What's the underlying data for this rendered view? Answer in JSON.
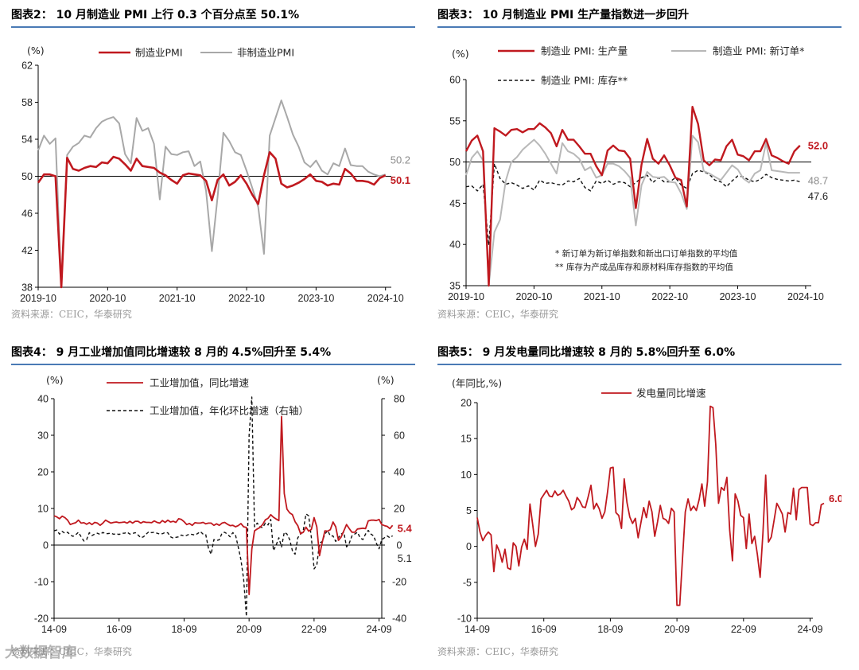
{
  "watermark": "大数据智库",
  "chart_data": [
    {
      "id": "p2",
      "type": "line",
      "title": "图表2：  10 月制造业 PMI 上行 0.3 个百分点至 50.1%",
      "source": "资料来源：CEIC，华泰研究",
      "yunit": "(%)",
      "ylim": [
        38,
        62
      ],
      "yticks": [
        38,
        42,
        46,
        50,
        54,
        58,
        62
      ],
      "xticks": [
        "2019-10",
        "2020-10",
        "2021-10",
        "2022-10",
        "2023-10",
        "2024-10"
      ],
      "xrange": [
        0,
        61
      ],
      "xtick_pos": [
        0,
        12,
        24,
        36,
        48,
        60
      ],
      "refline": 50,
      "series": [
        {
          "name": "制造业PMI",
          "color": "#c0191f",
          "dash": "",
          "width": 2.6,
          "end_label": "50.1",
          "values": [
            49.3,
            50.2,
            50.2,
            50.0,
            35.7,
            52.0,
            50.8,
            50.6,
            50.9,
            51.1,
            51.0,
            51.5,
            51.4,
            52.1,
            51.9,
            51.3,
            50.6,
            51.9,
            51.1,
            51.0,
            50.9,
            50.4,
            50.1,
            49.6,
            49.2,
            50.1,
            50.3,
            50.2,
            50.1,
            49.5,
            47.4,
            49.6,
            50.2,
            49.0,
            49.4,
            50.1,
            49.2,
            48.0,
            47.0,
            50.1,
            52.6,
            51.9,
            49.2,
            48.8,
            49.0,
            49.3,
            49.7,
            50.2,
            49.5,
            49.4,
            49.0,
            49.2,
            49.1,
            50.8,
            50.3,
            49.5,
            49.5,
            49.4,
            49.1,
            49.8,
            50.1
          ]
        },
        {
          "name": "非制造业PMI",
          "color": "#a8a8a8",
          "dash": "",
          "width": 2.0,
          "end_label": "50.2",
          "values": [
            52.8,
            54.4,
            53.5,
            54.1,
            29.6,
            52.3,
            53.2,
            53.6,
            54.4,
            54.2,
            55.2,
            55.9,
            56.2,
            56.4,
            55.7,
            52.4,
            51.4,
            56.3,
            54.9,
            55.2,
            53.5,
            47.5,
            53.2,
            52.4,
            52.3,
            52.6,
            52.7,
            51.1,
            51.6,
            48.4,
            41.9,
            47.8,
            54.7,
            53.8,
            52.6,
            52.3,
            50.6,
            48.7,
            46.7,
            41.6,
            54.4,
            56.3,
            58.2,
            56.4,
            54.5,
            53.2,
            51.5,
            51.0,
            51.7,
            50.6,
            50.2,
            51.4,
            51.1,
            53.0,
            51.2,
            51.1,
            51.1,
            50.5,
            50.2,
            50.0,
            50.2
          ]
        }
      ]
    },
    {
      "id": "p3",
      "type": "line",
      "title": "图表3：  10 月制造业 PMI 生产量指数进一步回升",
      "source": "资料来源：CEIC，华泰研究",
      "yunit": "(%)",
      "ylim": [
        35,
        60
      ],
      "yticks": [
        35,
        40,
        45,
        50,
        55,
        60
      ],
      "xticks": [
        "2019-10",
        "2020-10",
        "2021-10",
        "2022-10",
        "2023-10",
        "2024-10"
      ],
      "xrange": [
        0,
        61
      ],
      "xtick_pos": [
        0,
        12,
        24,
        36,
        48,
        60
      ],
      "refline": 50,
      "notes": [
        "*  新订单为新订单指数和新出口订单指数的平均值",
        "**  库存为产成品库存和原材料库存指数的平均值"
      ],
      "series": [
        {
          "name": "制造业 PMI: 生产量",
          "color": "#c0191f",
          "dash": "",
          "width": 2.4,
          "end_label": "52.0",
          "values": [
            51.3,
            52.6,
            53.2,
            51.3,
            27.8,
            54.1,
            53.7,
            53.2,
            53.9,
            54.0,
            53.6,
            54.0,
            54.0,
            54.7,
            54.2,
            53.5,
            51.9,
            53.9,
            52.7,
            52.7,
            51.9,
            51.0,
            51.0,
            49.5,
            48.4,
            51.4,
            52.0,
            51.4,
            51.3,
            50.4,
            44.4,
            49.7,
            52.8,
            50.4,
            49.8,
            50.8,
            49.6,
            48.1,
            47.8,
            44.6,
            56.7,
            54.6,
            50.2,
            49.6,
            50.3,
            50.2,
            51.9,
            52.7,
            50.9,
            50.7,
            50.2,
            51.3,
            51.3,
            52.8,
            50.8,
            50.5,
            50.1,
            49.8,
            51.3,
            52.0
          ]
        },
        {
          "name": "制造业 PMI: 新订单*",
          "color": "#b8b8b8",
          "dash": "",
          "width": 2.0,
          "end_label": "48.7",
          "values": [
            48.4,
            50.5,
            51.3,
            50.2,
            28.7,
            41.5,
            43.0,
            47.7,
            50.0,
            50.6,
            51.5,
            52.1,
            52.7,
            52.0,
            51.0,
            49.8,
            48.6,
            52.3,
            51.3,
            51.0,
            50.4,
            49.0,
            49.4,
            48.1,
            48.4,
            49.8,
            49.8,
            49.5,
            48.9,
            48.1,
            42.3,
            47.2,
            48.8,
            48.2,
            48.1,
            48.2,
            47.6,
            47.5,
            46.2,
            44.3,
            53.2,
            52.4,
            48.9,
            48.6,
            48.2,
            47.8,
            48.7,
            49.6,
            49.1,
            48.0,
            47.5,
            48.6,
            49.0,
            52.3,
            49.0,
            48.9,
            48.8,
            48.7,
            48.7,
            48.7
          ]
        },
        {
          "name": "制造业 PMI: 库存**",
          "color": "#111111",
          "dash": "4,3",
          "width": 1.4,
          "end_label": "47.6",
          "values": [
            47.0,
            47.1,
            46.5,
            47.3,
            39.9,
            49.8,
            48.0,
            47.3,
            47.5,
            47.2,
            46.8,
            47.1,
            46.6,
            47.8,
            47.4,
            47.5,
            47.3,
            47.2,
            47.7,
            47.6,
            48.0,
            46.9,
            46.5,
            47.7,
            47.4,
            47.8,
            47.3,
            47.6,
            47.5,
            47.0,
            47.5,
            48.1,
            48.4,
            47.5,
            48.1,
            47.6,
            47.6,
            48.1,
            47.2,
            46.8,
            48.6,
            49.0,
            48.8,
            48.5,
            47.8,
            47.6,
            47.0,
            47.7,
            48.3,
            48.2,
            47.8,
            47.6,
            47.9,
            48.5,
            48.1,
            47.9,
            47.8,
            47.7,
            47.8,
            47.6
          ]
        }
      ]
    },
    {
      "id": "p4",
      "type": "line",
      "title": "图表4：  9 月工业增加值同比增速较 8 月的 4.5%回升至 5.4%",
      "source": "资料来源：CEIC，华泰研究",
      "yunit": "(%)",
      "yunit_right": "(%)",
      "ylim": [
        -20,
        40
      ],
      "yticks": [
        -20,
        -10,
        0,
        10,
        20,
        30,
        40
      ],
      "ylim_right": [
        -40,
        80
      ],
      "yticks_right": [
        -40,
        -20,
        0,
        20,
        40,
        60,
        80
      ],
      "xticks": [
        "14-09",
        "16-09",
        "18-09",
        "20-09",
        "22-09",
        "24-09"
      ],
      "xrange": [
        0,
        121
      ],
      "xtick_pos": [
        0,
        24,
        48,
        72,
        96,
        120
      ],
      "refline": 0,
      "series": [
        {
          "name": "工业增加值，同比增速",
          "color": "#c0191f",
          "dash": "",
          "width": 1.8,
          "axis": "left",
          "end_label": "5.4",
          "values": [
            8.0,
            7.7,
            7.2,
            7.9,
            7.5,
            6.8,
            5.6,
            5.9,
            6.1,
            6.8,
            6.0,
            6.1,
            5.7,
            6.1,
            5.6,
            6.2,
            6.0,
            5.4,
            6.0,
            6.8,
            6.4,
            6.0,
            6.2,
            6.3,
            6.1,
            6.2,
            6.3,
            6.0,
            6.5,
            6.0,
            6.5,
            6.5,
            6.0,
            6.4,
            6.2,
            6.2,
            6.1,
            6.6,
            6.2,
            6.0,
            6.7,
            6.2,
            6.8,
            6.3,
            6.5,
            6.2,
            7.2,
            7.0,
            6.4,
            5.6,
            5.9,
            5.4,
            6.1,
            6.0,
            6.0,
            6.2,
            5.8,
            6.0,
            6.0,
            5.4,
            5.8,
            5.4,
            6.0,
            6.2,
            5.7,
            5.3,
            5.4,
            5.0,
            5.3,
            5.9,
            5.0,
            4.8,
            -13.5,
            -1.1,
            3.9,
            4.4,
            4.8,
            5.6,
            6.9,
            7.3,
            8.3,
            7.6,
            7.1,
            6.7,
            35.1,
            14.1,
            9.8,
            8.8,
            8.3,
            6.4,
            5.3,
            3.1,
            3.5,
            4.9,
            3.8,
            4.3,
            7.5,
            5.0,
            -2.9,
            0.7,
            3.9,
            3.8,
            4.2,
            6.3,
            5.0,
            1.3,
            2.2,
            3.9,
            5.6,
            4.5,
            3.5,
            3.5,
            4.4,
            4.5,
            4.6,
            4.5,
            6.6,
            6.8,
            6.8,
            6.7,
            7.0,
            5.6,
            5.3,
            5.1,
            4.5,
            5.4
          ]
        },
        {
          "name": "工业增加值，年化环比增速（右轴）",
          "color": "#111111",
          "dash": "4,3",
          "width": 1.4,
          "axis": "right",
          "end_label": "5.1",
          "values": [
            7.8,
            8.2,
            6.0,
            7.5,
            6.5,
            7.0,
            5.5,
            4.8,
            5.6,
            7.0,
            4.5,
            2.2,
            3.0,
            6.8,
            5.2,
            6.0,
            6.5,
            5.8,
            6.9,
            6.2,
            6.3,
            6.5,
            5.9,
            6.2,
            5.8,
            6.4,
            6.5,
            7.0,
            6.0,
            6.3,
            6.8,
            5.5,
            4.0,
            4.5,
            6.0,
            7.3,
            6.8,
            7.0,
            6.5,
            6.0,
            6.2,
            6.9,
            6.7,
            4.5,
            3.8,
            4.2,
            4.5,
            5.5,
            5.0,
            5.3,
            6.0,
            5.8,
            5.5,
            6.3,
            7.4,
            6.0,
            5.7,
            -1.8,
            -5.0,
            3.0,
            2.5,
            2.9,
            6.5,
            7.0,
            6.0,
            4.5,
            6.8,
            5.5,
            -1.0,
            -8.0,
            -18.5,
            -39.0,
            60.0,
            82.0,
            10.0,
            12.0,
            10.0,
            9.5,
            12.0,
            11.0,
            14.0,
            -3.0,
            0.0,
            4.0,
            -1.0,
            7.0,
            6.0,
            3.0,
            -3.0,
            -5.0,
            4.0,
            6.0,
            8.0,
            17.0,
            16.0,
            4.0,
            -13.0,
            -11.0,
            1.0,
            2.0,
            6.0,
            8.0,
            5.0,
            5.0,
            2.0,
            4.0,
            6.0,
            7.0,
            -1.0,
            1.0,
            5.0,
            6.0,
            7.0,
            4.0,
            3.0,
            6.0,
            8.0,
            6.0,
            5.0,
            1.0,
            -2.0,
            3.0,
            4.0,
            5.0,
            4.0,
            5.1
          ]
        }
      ]
    },
    {
      "id": "p5",
      "type": "line",
      "title": "图表5：  9 月发电量同比增速较 8 月的 5.8%回升至 6.0%",
      "source": "资料来源：CEIC，华泰研究",
      "yunit": "(年同比,%)",
      "ylim": [
        -10,
        20
      ],
      "yticks": [
        -10,
        -5,
        0,
        5,
        10,
        15,
        20
      ],
      "xticks": [
        "14-09",
        "16-09",
        "18-09",
        "20-09",
        "22-09",
        "24-09"
      ],
      "xrange": [
        0,
        121
      ],
      "xtick_pos": [
        0,
        24,
        48,
        72,
        96,
        120
      ],
      "series": [
        {
          "name": "发电量同比增速",
          "color": "#c0191f",
          "dash": "",
          "width": 1.8,
          "end_label": "6.0",
          "values": [
            4.0,
            2.0,
            0.8,
            1.5,
            2.0,
            1.6,
            -3.5,
            0.2,
            -0.7,
            -2.2,
            -0.4,
            -3.0,
            -3.2,
            0.5,
            0.0,
            -2.7,
            -0.1,
            1.0,
            -0.4,
            5.9,
            3.0,
            0.0,
            1.7,
            6.6,
            7.2,
            7.8,
            7.0,
            6.9,
            7.7,
            7.1,
            7.3,
            7.8,
            7.0,
            6.3,
            5.1,
            5.4,
            6.8,
            6.3,
            5.5,
            5.4,
            6.9,
            8.5,
            5.2,
            6.0,
            5.2,
            3.9,
            4.8,
            7.6,
            10.9,
            11.0,
            4.7,
            4.3,
            2.5,
            9.4,
            6.1,
            4.1,
            3.2,
            3.9,
            1.2,
            3.3,
            5.4,
            4.0,
            6.3,
            4.8,
            1.4,
            3.4,
            5.7,
            3.9,
            3.7,
            3.2,
            5.3,
            4.8,
            -8.2,
            -8.2,
            -1.7,
            4.8,
            6.6,
            5.0,
            5.6,
            5.0,
            6.5,
            8.7,
            5.6,
            9.0,
            19.5,
            19.3,
            14.2,
            6.0,
            8.2,
            7.8,
            9.6,
            2.3,
            -2.0,
            7.3,
            6.3,
            4.3,
            4.0,
            -0.3,
            4.5,
            0.4,
            1.4,
            -1.1,
            -4.3,
            1.8,
            9.9,
            0.6,
            1.3,
            3.6,
            6.0,
            5.3,
            4.5,
            2.0,
            4.7,
            4.5,
            8.1,
            3.7,
            7.9,
            8.2,
            8.2,
            8.2,
            3.1,
            2.9,
            3.3,
            3.3,
            5.8,
            6.0
          ]
        }
      ]
    }
  ]
}
